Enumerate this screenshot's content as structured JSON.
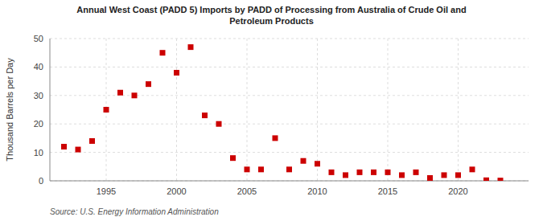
{
  "chart_data": {
    "type": "scatter",
    "title": "Annual West Coast (PADD 5) Imports by PADD of Processing from Australia of Crude Oil and\nPetroleum Products",
    "ylabel": "Thousand Barrels per Day",
    "annotations": [
      "Source: U.S. Energy Information Administration"
    ],
    "x": [
      1992,
      1993,
      1994,
      1995,
      1996,
      1997,
      1998,
      1999,
      2000,
      2001,
      2002,
      2003,
      2004,
      2005,
      2006,
      2007,
      2008,
      2009,
      2010,
      2011,
      2012,
      2013,
      2014,
      2015,
      2016,
      2017,
      2018,
      2019,
      2020,
      2021,
      2022,
      2023
    ],
    "values": [
      12,
      11,
      14,
      25,
      31,
      30,
      34,
      45,
      38,
      47,
      23,
      20,
      8,
      4,
      4,
      15,
      4,
      7,
      6,
      3,
      2,
      3,
      3,
      3,
      2,
      3,
      1,
      2,
      2,
      4,
      0.2,
      0.1
    ],
    "color": "#cc0000",
    "marker": "square",
    "xlim": [
      1991,
      2025
    ],
    "ylim": [
      0,
      50
    ],
    "xticks": [
      1995,
      2000,
      2005,
      2010,
      2015,
      2020
    ],
    "yticks": [
      0,
      10,
      20,
      30,
      40,
      50
    ],
    "grid": true
  }
}
